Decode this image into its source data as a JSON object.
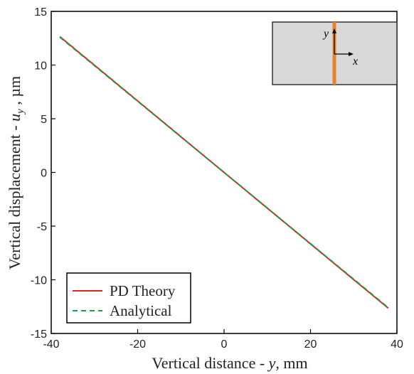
{
  "chart_data": {
    "type": "line",
    "xlabel": {
      "prefix": "Vertical distance - ",
      "var": "y",
      "suffix": ", mm"
    },
    "ylabel": {
      "prefix": "Vertical displacement - ",
      "var": "u",
      "sub": "y",
      "suffix": " , µm"
    },
    "xlim": [
      -40,
      40
    ],
    "ylim": [
      -15,
      15
    ],
    "xticks": [
      -40,
      -20,
      0,
      20,
      40
    ],
    "yticks": [
      -15,
      -10,
      -5,
      0,
      5,
      10,
      15
    ],
    "grid": false,
    "legend_position": "bottom-left",
    "series": [
      {
        "name": "PD Theory",
        "color": "#e0251b",
        "dash": "solid",
        "x": [
          -38,
          38
        ],
        "y": [
          12.65,
          -12.65
        ]
      },
      {
        "name": "Analytical",
        "color": "#1e9a4a",
        "dash": "dashed",
        "x": [
          -38,
          38
        ],
        "y": [
          12.6,
          -12.6
        ]
      }
    ],
    "inset": {
      "x_axis_label": "x",
      "y_axis_label": "y",
      "fill": "#d9d9d9",
      "bar_color": "#e8822a"
    }
  }
}
